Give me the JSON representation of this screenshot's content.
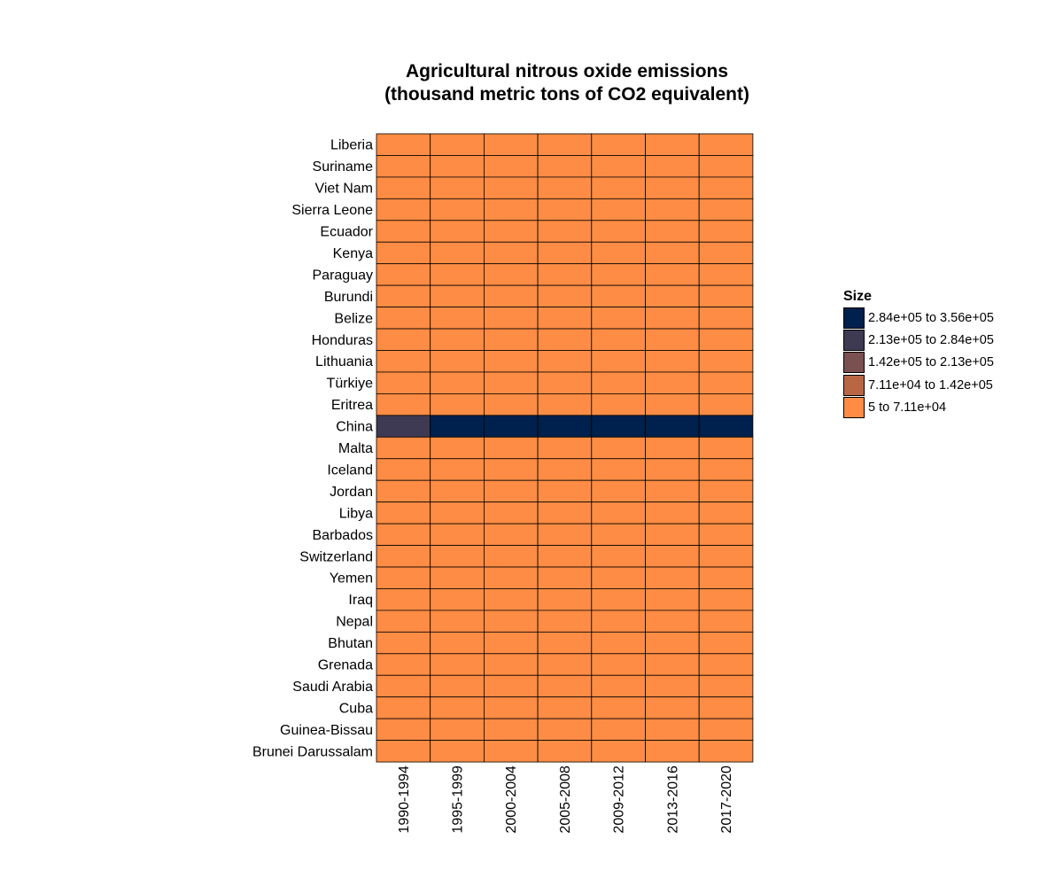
{
  "chart_data": {
    "type": "heatmap",
    "title": [
      "Agricultural nitrous oxide emissions",
      "(thousand metric tons of CO2 equivalent)"
    ],
    "xlabel": "",
    "ylabel": "",
    "x": [
      "1990-1994",
      "1995-1999",
      "2000-2004",
      "2005-2008",
      "2009-2012",
      "2013-2016",
      "2017-2020"
    ],
    "y": [
      "Liberia",
      "Suriname",
      "Viet Nam",
      "Sierra Leone",
      "Ecuador",
      "Kenya",
      "Paraguay",
      "Burundi",
      "Belize",
      "Honduras",
      "Lithuania",
      "Türkiye",
      "Eritrea",
      "China",
      "Malta",
      "Iceland",
      "Jordan",
      "Libya",
      "Barbados",
      "Switzerland",
      "Yemen",
      "Iraq",
      "Nepal",
      "Bhutan",
      "Grenada",
      "Saudi Arabia",
      "Cuba",
      "Guinea-Bissau",
      "Brunei Darussalam"
    ],
    "bins": [
      {
        "label": "2.84e+05 to 3.56e+05",
        "color": "#00204d"
      },
      {
        "label": "2.13e+05 to 2.84e+05",
        "color": "#3f3a53"
      },
      {
        "label": "1.42e+05 to 2.13e+05",
        "color": "#7b5050"
      },
      {
        "label": "7.11e+04 to 1.42e+05",
        "color": "#b96645"
      },
      {
        "label": "5 to 7.11e+04",
        "color": "#ff8c44"
      }
    ],
    "cell_bins": [
      [
        4,
        4,
        4,
        4,
        4,
        4,
        4
      ],
      [
        4,
        4,
        4,
        4,
        4,
        4,
        4
      ],
      [
        4,
        4,
        4,
        4,
        4,
        4,
        4
      ],
      [
        4,
        4,
        4,
        4,
        4,
        4,
        4
      ],
      [
        4,
        4,
        4,
        4,
        4,
        4,
        4
      ],
      [
        4,
        4,
        4,
        4,
        4,
        4,
        4
      ],
      [
        4,
        4,
        4,
        4,
        4,
        4,
        4
      ],
      [
        4,
        4,
        4,
        4,
        4,
        4,
        4
      ],
      [
        4,
        4,
        4,
        4,
        4,
        4,
        4
      ],
      [
        4,
        4,
        4,
        4,
        4,
        4,
        4
      ],
      [
        4,
        4,
        4,
        4,
        4,
        4,
        4
      ],
      [
        4,
        4,
        4,
        4,
        4,
        4,
        4
      ],
      [
        4,
        4,
        4,
        4,
        4,
        4,
        4
      ],
      [
        1,
        0,
        0,
        0,
        0,
        0,
        0
      ],
      [
        4,
        4,
        4,
        4,
        4,
        4,
        4
      ],
      [
        4,
        4,
        4,
        4,
        4,
        4,
        4
      ],
      [
        4,
        4,
        4,
        4,
        4,
        4,
        4
      ],
      [
        4,
        4,
        4,
        4,
        4,
        4,
        4
      ],
      [
        4,
        4,
        4,
        4,
        4,
        4,
        4
      ],
      [
        4,
        4,
        4,
        4,
        4,
        4,
        4
      ],
      [
        4,
        4,
        4,
        4,
        4,
        4,
        4
      ],
      [
        4,
        4,
        4,
        4,
        4,
        4,
        4
      ],
      [
        4,
        4,
        4,
        4,
        4,
        4,
        4
      ],
      [
        4,
        4,
        4,
        4,
        4,
        4,
        4
      ],
      [
        4,
        4,
        4,
        4,
        4,
        4,
        4
      ],
      [
        4,
        4,
        4,
        4,
        4,
        4,
        4
      ],
      [
        4,
        4,
        4,
        4,
        4,
        4,
        4
      ],
      [
        4,
        4,
        4,
        4,
        4,
        4,
        4
      ],
      [
        4,
        4,
        4,
        4,
        4,
        4,
        4
      ]
    ],
    "legend": {
      "title": "Size",
      "position": "right"
    },
    "grid": false
  }
}
